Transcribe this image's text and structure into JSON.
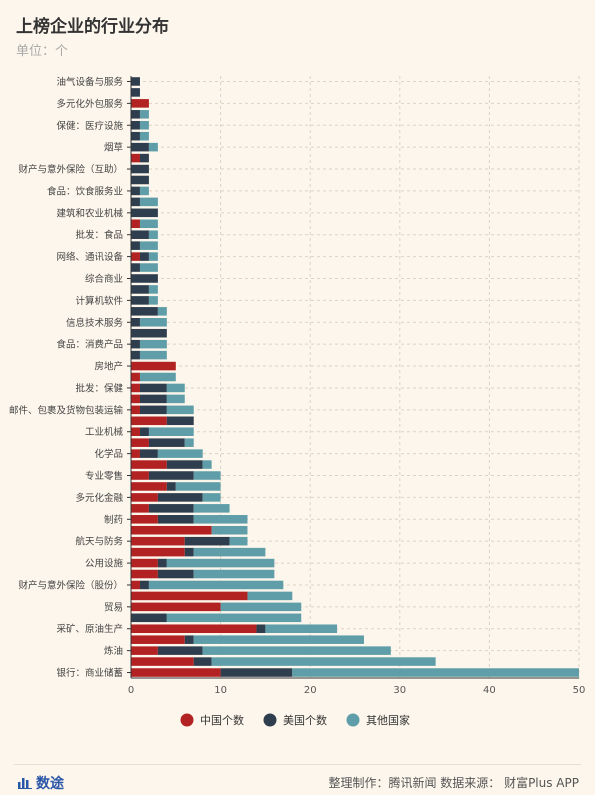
{
  "header": {
    "title": "上榜企业的行业分布",
    "subtitle": "单位：个"
  },
  "footer": {
    "brand": "数途",
    "source": "整理制作：腾讯新闻   数据来源：  财富Plus APP"
  },
  "colors": {
    "china": "#b22222",
    "usa": "#2f3e4e",
    "other": "#5f9ea8",
    "background": "#fdf6ec"
  },
  "chart_data": {
    "type": "bar",
    "orientation": "horizontal",
    "stacked": true,
    "x_ticks": [
      "0",
      "10",
      "20",
      "30",
      "40",
      "50"
    ],
    "xlim": [
      0,
      50
    ],
    "grid": true,
    "legend_position": "bottom",
    "categories": [
      "油气设备与服务",
      "",
      "多元化外包服务",
      "",
      "保健：医疗设施",
      "",
      "烟草",
      "",
      "财产与意外保险（互助）",
      "",
      "食品：饮食服务业",
      "",
      "建筑和农业机械",
      "",
      "批发：食品",
      "",
      "网络、通讯设备",
      "",
      "综合商业",
      "",
      "计算机软件",
      "",
      "信息技术服务",
      "",
      "食品：消费产品",
      "",
      "房地产",
      "",
      "批发：保健",
      "",
      "邮件、包裹及货物包装运输",
      "",
      "工业机械",
      "",
      "化学品",
      "",
      "专业零售",
      "",
      "多元化金融",
      "",
      "制药",
      "",
      "航天与防务",
      "",
      "公用设施",
      "",
      "财产与意外保险（股份）",
      "",
      "贸易",
      "",
      "采矿、原油生产",
      "",
      "炼油",
      "",
      "银行：商业储蓄"
    ],
    "series": [
      {
        "name": "中国个数",
        "values": [
          0,
          0,
          2,
          0,
          0,
          0,
          0,
          1,
          0,
          0,
          0,
          0,
          0,
          1,
          0,
          0,
          1,
          0,
          0,
          0,
          0,
          0,
          0,
          0,
          0,
          0,
          5,
          1,
          1,
          1,
          1,
          4,
          1,
          2,
          1,
          4,
          2,
          4,
          3,
          2,
          3,
          9,
          6,
          6,
          3,
          3,
          1,
          13,
          10,
          0,
          14,
          6,
          3,
          7,
          10
        ]
      },
      {
        "name": "美国个数",
        "values": [
          1,
          1,
          0,
          1,
          1,
          1,
          2,
          1,
          2,
          2,
          1,
          1,
          3,
          0,
          2,
          1,
          1,
          1,
          3,
          2,
          2,
          3,
          1,
          4,
          1,
          1,
          0,
          0,
          3,
          3,
          3,
          3,
          1,
          4,
          2,
          4,
          5,
          1,
          5,
          5,
          4,
          0,
          5,
          1,
          1,
          4,
          1,
          0,
          0,
          4,
          1,
          1,
          5,
          2,
          8
        ]
      },
      {
        "name": "其他国家",
        "values": [
          0,
          0,
          0,
          1,
          1,
          1,
          1,
          0,
          0,
          0,
          1,
          2,
          0,
          2,
          1,
          2,
          1,
          2,
          0,
          1,
          1,
          1,
          3,
          0,
          3,
          3,
          0,
          4,
          2,
          2,
          3,
          0,
          5,
          1,
          5,
          1,
          3,
          5,
          2,
          4,
          6,
          4,
          2,
          8,
          12,
          9,
          15,
          5,
          9,
          15,
          8,
          19,
          21,
          25,
          32
        ]
      }
    ]
  },
  "legend": [
    {
      "label": "中国个数",
      "color": "#b22222"
    },
    {
      "label": "美国个数",
      "color": "#2f3e4e"
    },
    {
      "label": "其他国家",
      "color": "#5f9ea8"
    }
  ]
}
